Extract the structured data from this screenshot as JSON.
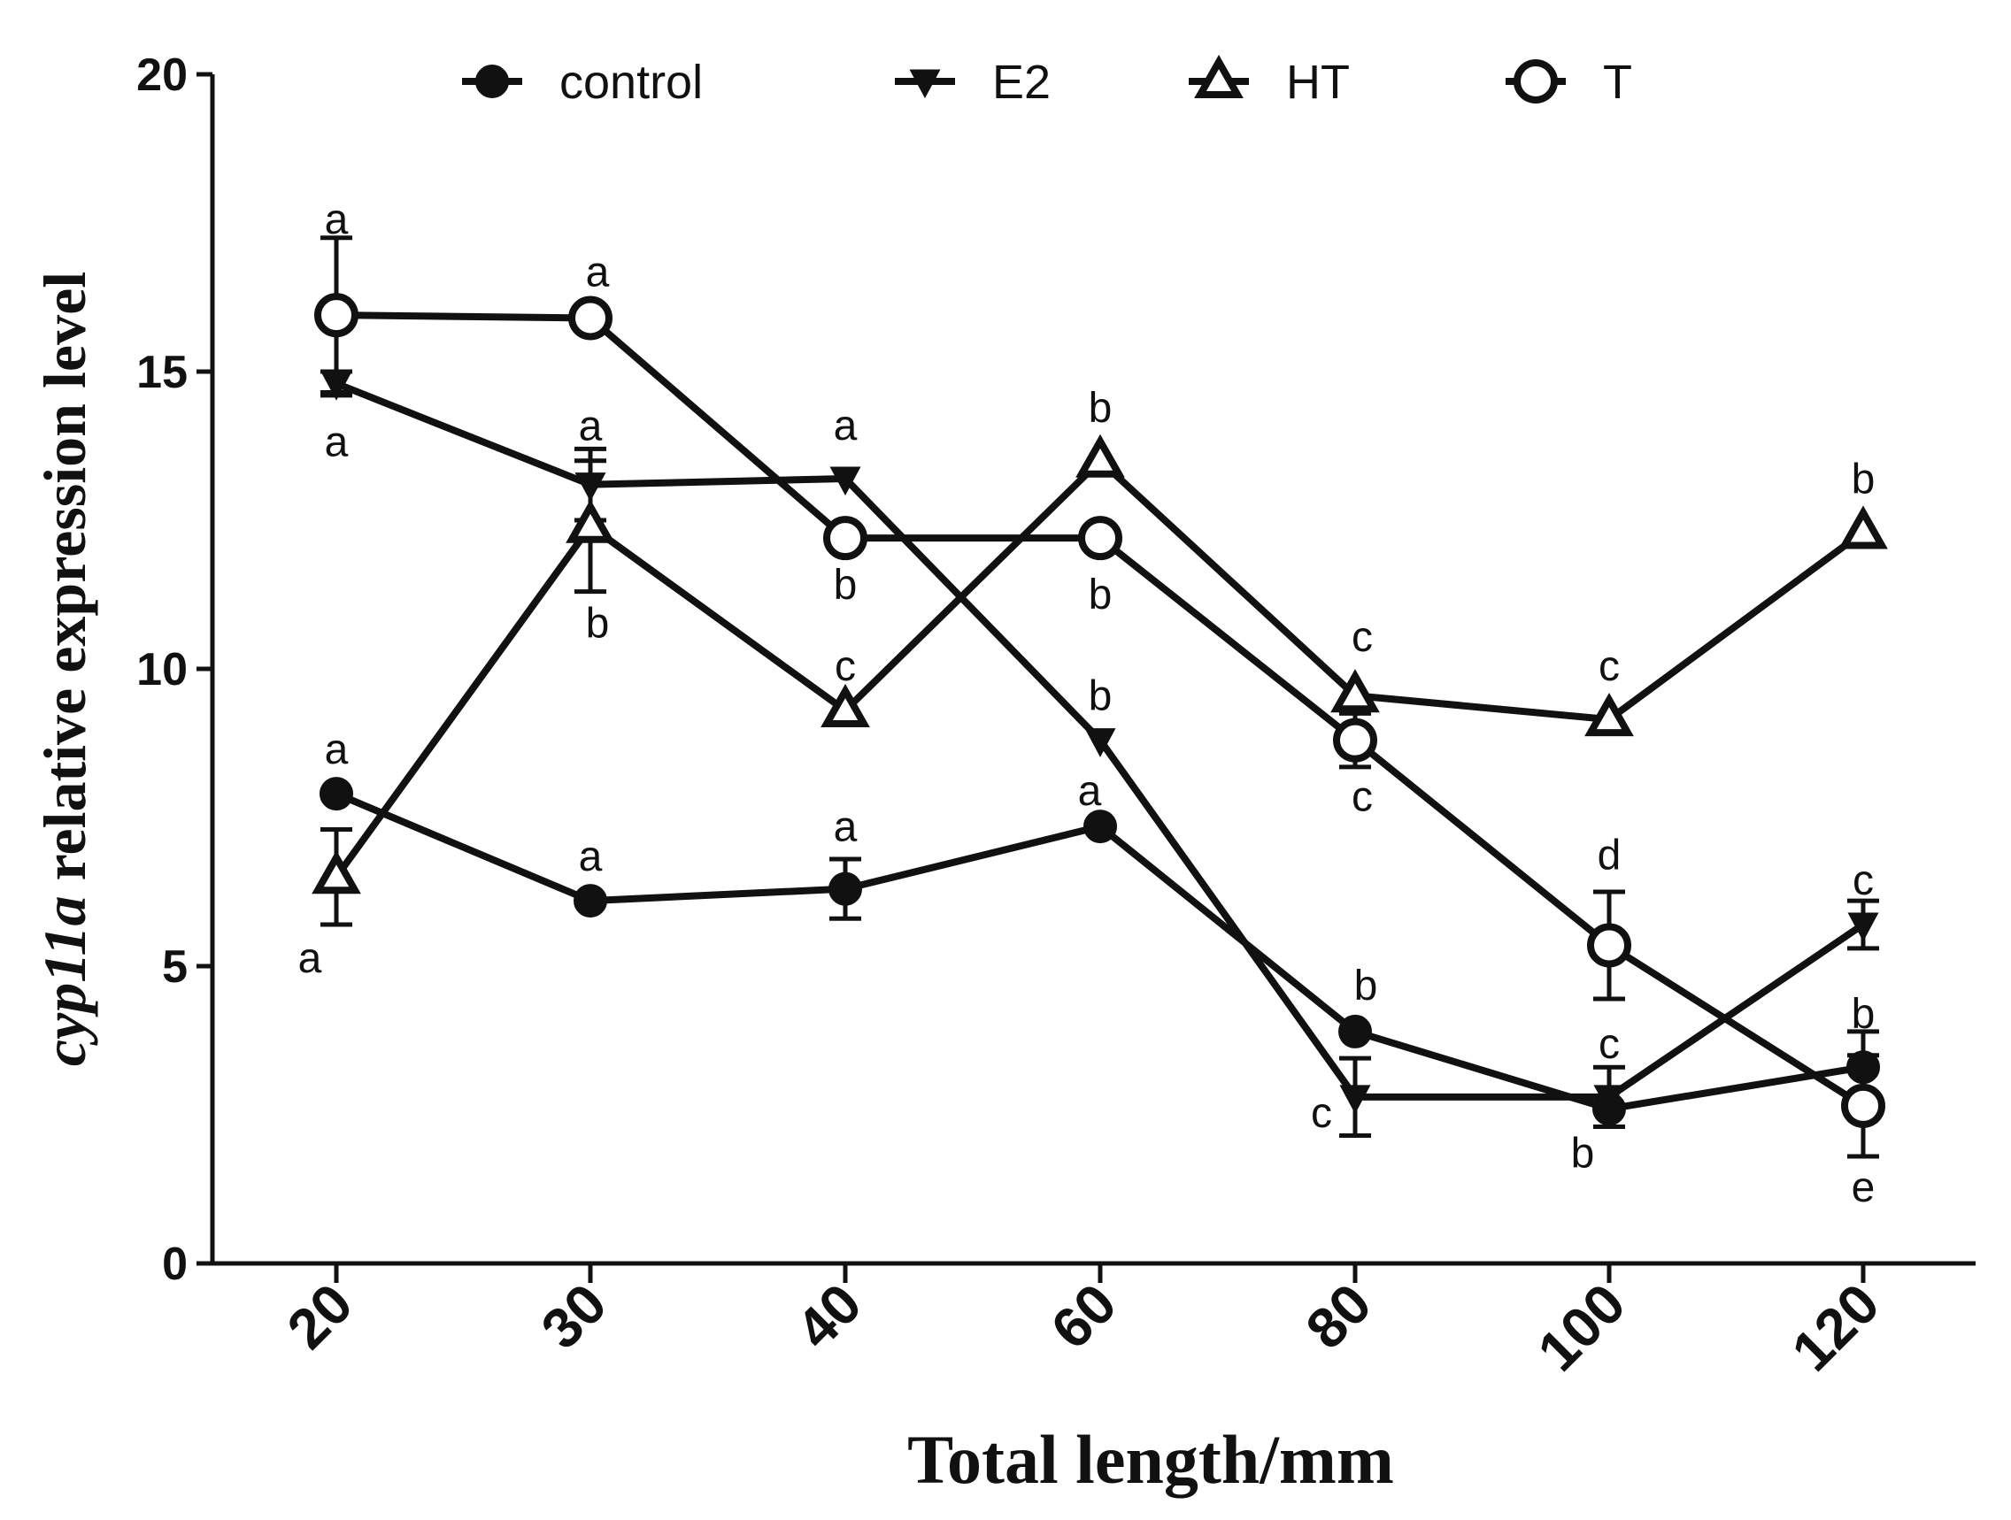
{
  "chart_data": {
    "type": "line",
    "title": "",
    "xlabel": "Total length/mm",
    "ylabel_italic": "cyp11a",
    "ylabel_rest": " relative expression level",
    "categories": [
      "20",
      "30",
      "40",
      "60",
      "80",
      "100",
      "120"
    ],
    "ylim": [
      0,
      20
    ],
    "yticks": [
      0,
      5,
      10,
      15,
      20
    ],
    "ytick_labels": [
      "0",
      "5",
      "10",
      "15",
      "20"
    ],
    "legend_position": "top",
    "series": [
      {
        "name": "control",
        "marker": "circle-filled",
        "values": [
          7.9,
          6.1,
          6.3,
          7.35,
          3.9,
          2.6,
          3.3
        ],
        "errors": [
          0,
          0,
          0.5,
          0,
          0,
          0,
          0.6
        ],
        "letters": [
          "a",
          "a",
          "a",
          "a",
          "b",
          "b",
          "b"
        ]
      },
      {
        "name": "E2",
        "marker": "triangle-down-filled",
        "values": [
          14.8,
          13.1,
          13.2,
          8.8,
          2.8,
          2.8,
          5.7
        ],
        "errors": [
          0.2,
          0.6,
          0,
          0,
          0.65,
          0.5,
          0.4
        ],
        "letters": [
          "a",
          "a",
          "a",
          "b",
          "c",
          "c",
          "c"
        ]
      },
      {
        "name": "HT",
        "marker": "triangle-up-open",
        "values": [
          6.5,
          12.4,
          9.3,
          13.5,
          9.55,
          9.15,
          12.3
        ],
        "errors": [
          0.8,
          1.1,
          0,
          0,
          0,
          0,
          0
        ],
        "letters": [
          "a",
          "b",
          "c",
          "b",
          "c",
          "c",
          "b"
        ]
      },
      {
        "name": "T",
        "marker": "circle-open",
        "values": [
          15.95,
          15.9,
          12.2,
          12.2,
          8.8,
          5.35,
          2.65
        ],
        "errors": [
          1.3,
          0,
          0,
          0,
          0.45,
          0.9,
          0.85
        ],
        "letters": [
          "a",
          "a",
          "b",
          "b",
          "c",
          "d",
          "e"
        ]
      }
    ]
  }
}
